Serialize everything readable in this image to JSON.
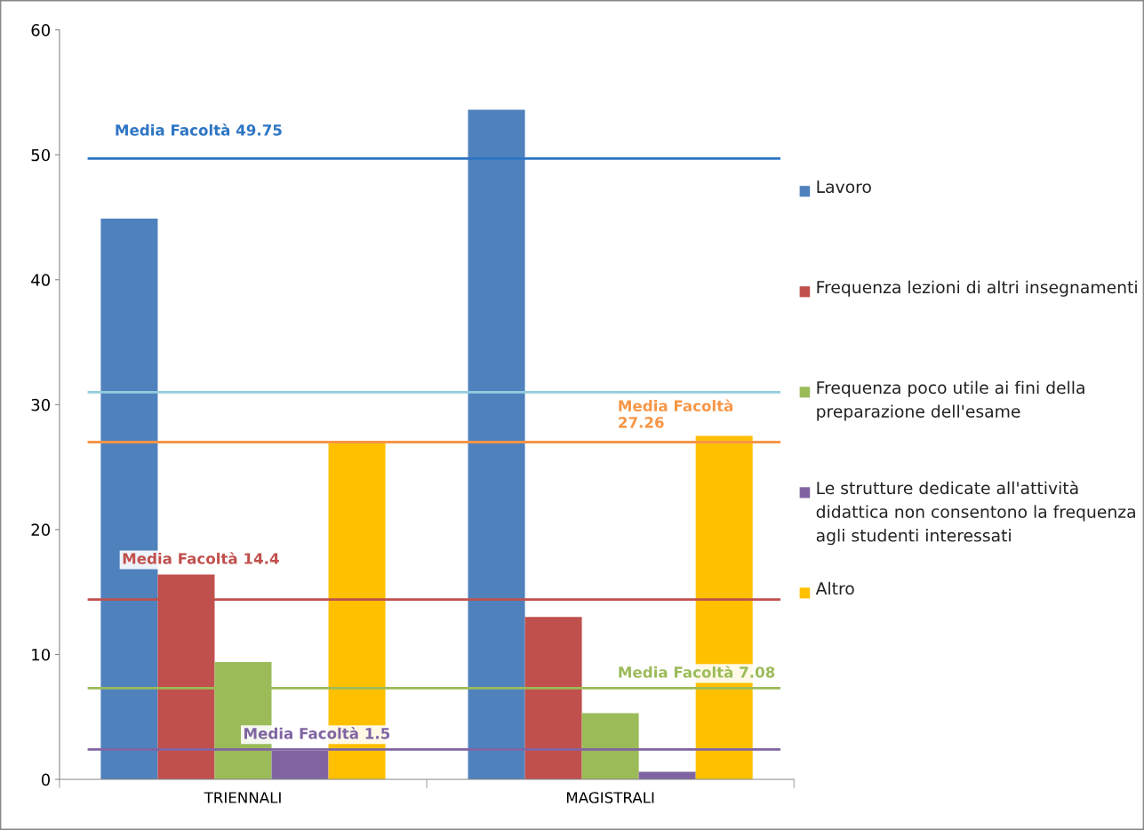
{
  "chart_data": {
    "type": "bar",
    "categories": [
      "TRIENNALI",
      "MAGISTRALI"
    ],
    "series": [
      {
        "name": "Lavoro",
        "color": "#4f81bd",
        "values": [
          44.9,
          53.6
        ]
      },
      {
        "name": "Frequenza lezioni di altri insegnamenti",
        "color": "#c0504d",
        "values": [
          16.4,
          13.0
        ]
      },
      {
        "name": "Frequenza poco utile ai fini della preparazione dell'esame",
        "color": "#9bbb59",
        "values": [
          9.4,
          5.3
        ]
      },
      {
        "name": "Le strutture dedicate all'attività didattica non consentono la frequenza agli studenti interessati",
        "color": "#8064a2",
        "values": [
          2.3,
          0.6
        ]
      },
      {
        "name": "Altro",
        "color": "#ffc000",
        "values": [
          26.9,
          27.5
        ]
      }
    ],
    "ylim": [
      0,
      60
    ],
    "yticks": [
      0,
      10,
      20,
      30,
      40,
      50,
      60
    ],
    "ref_lines": [
      {
        "axis": "y",
        "value": 49.7,
        "label": "Media Facoltà 49.75",
        "color": "#2e75c4"
      },
      {
        "axis": "y",
        "value": 31.0,
        "label": null,
        "color": "#93cddd"
      },
      {
        "axis": "y",
        "value": 27.0,
        "label": "Media Facoltà\n27.26",
        "color": "#f79646"
      },
      {
        "axis": "y",
        "value": 14.4,
        "label": "Media Facoltà 14.4",
        "color": "#c0504d"
      },
      {
        "axis": "y",
        "value": 7.3,
        "label": "Media Facoltà 7.08",
        "color": "#9bbb59"
      },
      {
        "axis": "y",
        "value": 2.4,
        "label": "Media Facoltà 1.5",
        "color": "#8064a2"
      }
    ],
    "grid": false,
    "legend": "right"
  }
}
